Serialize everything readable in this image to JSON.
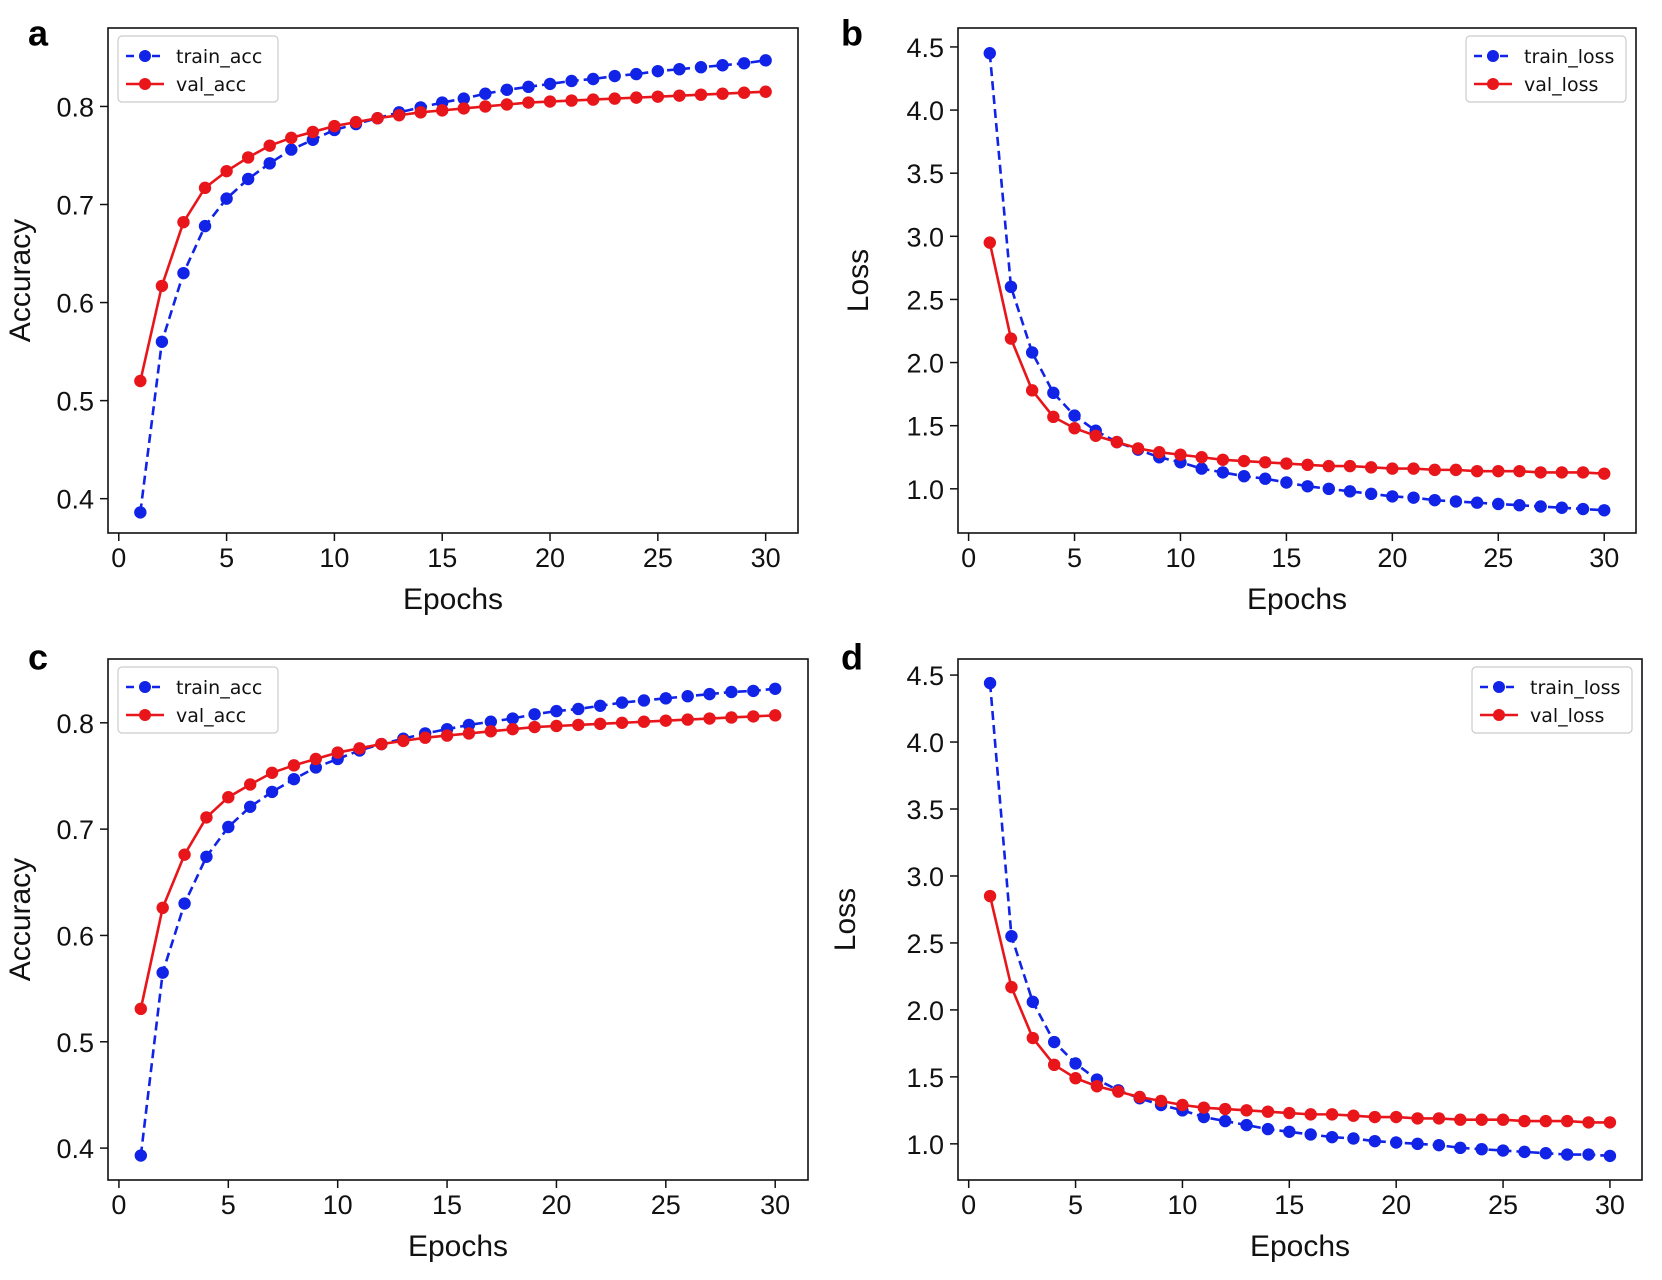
{
  "figure_colors": {
    "train": "#1023e6",
    "val": "#e8161b"
  },
  "chart_data": [
    {
      "panel": "a",
      "type": "line",
      "xlabel": "Epochs",
      "ylabel": "Accuracy",
      "xlim": [
        -0.5,
        31.5
      ],
      "ylim": [
        0.365,
        0.88
      ],
      "xticks": [
        0,
        5,
        10,
        15,
        20,
        25,
        30
      ],
      "yticks": [
        0.4,
        0.5,
        0.6,
        0.7,
        0.8
      ],
      "tick_labels_y": [
        "0.4",
        "0.5",
        "0.6",
        "0.7",
        "0.8"
      ],
      "tick_labels_x": [
        "0",
        "5",
        "10",
        "15",
        "20",
        "25",
        "30"
      ],
      "legend_position": "top-left",
      "x": [
        1,
        2,
        3,
        4,
        5,
        6,
        7,
        8,
        9,
        10,
        11,
        12,
        13,
        14,
        15,
        16,
        17,
        18,
        19,
        20,
        21,
        22,
        23,
        24,
        25,
        26,
        27,
        28,
        29,
        30
      ],
      "series": [
        {
          "name": "train_acc",
          "style": "dashed",
          "values": [
            0.386,
            0.56,
            0.63,
            0.678,
            0.706,
            0.726,
            0.742,
            0.756,
            0.766,
            0.776,
            0.782,
            0.788,
            0.794,
            0.799,
            0.804,
            0.808,
            0.813,
            0.817,
            0.82,
            0.823,
            0.826,
            0.828,
            0.831,
            0.833,
            0.836,
            0.838,
            0.84,
            0.842,
            0.844,
            0.847
          ]
        },
        {
          "name": "val_acc",
          "style": "solid",
          "values": [
            0.52,
            0.617,
            0.682,
            0.717,
            0.734,
            0.748,
            0.76,
            0.768,
            0.774,
            0.78,
            0.784,
            0.788,
            0.791,
            0.794,
            0.796,
            0.798,
            0.8,
            0.802,
            0.804,
            0.805,
            0.806,
            0.807,
            0.808,
            0.809,
            0.81,
            0.811,
            0.812,
            0.813,
            0.814,
            0.815
          ]
        }
      ]
    },
    {
      "panel": "b",
      "type": "line",
      "xlabel": "Epochs",
      "ylabel": "Loss",
      "xlim": [
        -0.5,
        31.5
      ],
      "ylim": [
        0.65,
        4.65
      ],
      "xticks": [
        0,
        5,
        10,
        15,
        20,
        25,
        30
      ],
      "yticks": [
        1.0,
        1.5,
        2.0,
        2.5,
        3.0,
        3.5,
        4.0,
        4.5
      ],
      "tick_labels_y": [
        "1.0",
        "1.5",
        "2.0",
        "2.5",
        "3.0",
        "3.5",
        "4.0",
        "4.5"
      ],
      "tick_labels_x": [
        "0",
        "5",
        "10",
        "15",
        "20",
        "25",
        "30"
      ],
      "legend_position": "top-right",
      "x": [
        1,
        2,
        3,
        4,
        5,
        6,
        7,
        8,
        9,
        10,
        11,
        12,
        13,
        14,
        15,
        16,
        17,
        18,
        19,
        20,
        21,
        22,
        23,
        24,
        25,
        26,
        27,
        28,
        29,
        30
      ],
      "series": [
        {
          "name": "train_loss",
          "style": "dashed",
          "values": [
            4.45,
            2.6,
            2.08,
            1.76,
            1.58,
            1.46,
            1.37,
            1.31,
            1.25,
            1.21,
            1.16,
            1.13,
            1.1,
            1.08,
            1.05,
            1.02,
            1.0,
            0.98,
            0.96,
            0.94,
            0.93,
            0.91,
            0.9,
            0.89,
            0.88,
            0.87,
            0.86,
            0.85,
            0.84,
            0.83
          ]
        },
        {
          "name": "val_loss",
          "style": "solid",
          "values": [
            2.95,
            2.19,
            1.78,
            1.57,
            1.48,
            1.42,
            1.37,
            1.32,
            1.29,
            1.27,
            1.25,
            1.23,
            1.22,
            1.21,
            1.2,
            1.19,
            1.18,
            1.18,
            1.17,
            1.16,
            1.16,
            1.15,
            1.15,
            1.14,
            1.14,
            1.14,
            1.13,
            1.13,
            1.13,
            1.12
          ]
        }
      ]
    },
    {
      "panel": "c",
      "type": "line",
      "xlabel": "Epochs",
      "ylabel": "Accuracy",
      "xlim": [
        -0.5,
        31.5
      ],
      "ylim": [
        0.37,
        0.86
      ],
      "xticks": [
        0,
        5,
        10,
        15,
        20,
        25,
        30
      ],
      "yticks": [
        0.4,
        0.5,
        0.6,
        0.7,
        0.8
      ],
      "tick_labels_y": [
        "0.4",
        "0.5",
        "0.6",
        "0.7",
        "0.8"
      ],
      "tick_labels_x": [
        "0",
        "5",
        "10",
        "15",
        "20",
        "25",
        "30"
      ],
      "legend_position": "top-left",
      "x": [
        1,
        2,
        3,
        4,
        5,
        6,
        7,
        8,
        9,
        10,
        11,
        12,
        13,
        14,
        15,
        16,
        17,
        18,
        19,
        20,
        21,
        22,
        23,
        24,
        25,
        26,
        27,
        28,
        29,
        30
      ],
      "series": [
        {
          "name": "train_acc",
          "style": "dashed",
          "values": [
            0.393,
            0.565,
            0.63,
            0.674,
            0.702,
            0.721,
            0.735,
            0.747,
            0.758,
            0.766,
            0.774,
            0.78,
            0.785,
            0.79,
            0.794,
            0.798,
            0.801,
            0.804,
            0.808,
            0.811,
            0.813,
            0.816,
            0.819,
            0.821,
            0.823,
            0.825,
            0.827,
            0.829,
            0.83,
            0.832
          ]
        },
        {
          "name": "val_acc",
          "style": "solid",
          "values": [
            0.531,
            0.626,
            0.676,
            0.711,
            0.73,
            0.742,
            0.753,
            0.76,
            0.766,
            0.772,
            0.776,
            0.78,
            0.783,
            0.786,
            0.788,
            0.79,
            0.792,
            0.794,
            0.796,
            0.797,
            0.798,
            0.799,
            0.8,
            0.801,
            0.802,
            0.803,
            0.804,
            0.805,
            0.806,
            0.807
          ]
        }
      ]
    },
    {
      "panel": "d",
      "type": "line",
      "xlabel": "Epochs",
      "ylabel": "Loss",
      "xlim": [
        -0.5,
        31.5
      ],
      "ylim": [
        0.73,
        4.62
      ],
      "xticks": [
        0,
        5,
        10,
        15,
        20,
        25,
        30
      ],
      "yticks": [
        1.0,
        1.5,
        2.0,
        2.5,
        3.0,
        3.5,
        4.0,
        4.5
      ],
      "tick_labels_y": [
        "1.0",
        "1.5",
        "2.0",
        "2.5",
        "3.0",
        "3.5",
        "4.0",
        "4.5"
      ],
      "tick_labels_x": [
        "0",
        "5",
        "10",
        "15",
        "20",
        "25",
        "30"
      ],
      "legend_position": "top-right",
      "x": [
        1,
        2,
        3,
        4,
        5,
        6,
        7,
        8,
        9,
        10,
        11,
        12,
        13,
        14,
        15,
        16,
        17,
        18,
        19,
        20,
        21,
        22,
        23,
        24,
        25,
        26,
        27,
        28,
        29,
        30
      ],
      "series": [
        {
          "name": "train_loss",
          "style": "dashed",
          "values": [
            4.44,
            2.55,
            2.06,
            1.76,
            1.6,
            1.48,
            1.4,
            1.34,
            1.29,
            1.25,
            1.2,
            1.17,
            1.14,
            1.11,
            1.09,
            1.07,
            1.05,
            1.04,
            1.02,
            1.01,
            1.0,
            0.99,
            0.97,
            0.96,
            0.95,
            0.94,
            0.93,
            0.92,
            0.92,
            0.91
          ]
        },
        {
          "name": "val_loss",
          "style": "solid",
          "values": [
            2.85,
            2.17,
            1.79,
            1.59,
            1.49,
            1.43,
            1.39,
            1.35,
            1.32,
            1.29,
            1.27,
            1.26,
            1.25,
            1.24,
            1.23,
            1.22,
            1.22,
            1.21,
            1.2,
            1.2,
            1.19,
            1.19,
            1.18,
            1.18,
            1.18,
            1.17,
            1.17,
            1.17,
            1.16,
            1.16
          ]
        }
      ]
    }
  ]
}
